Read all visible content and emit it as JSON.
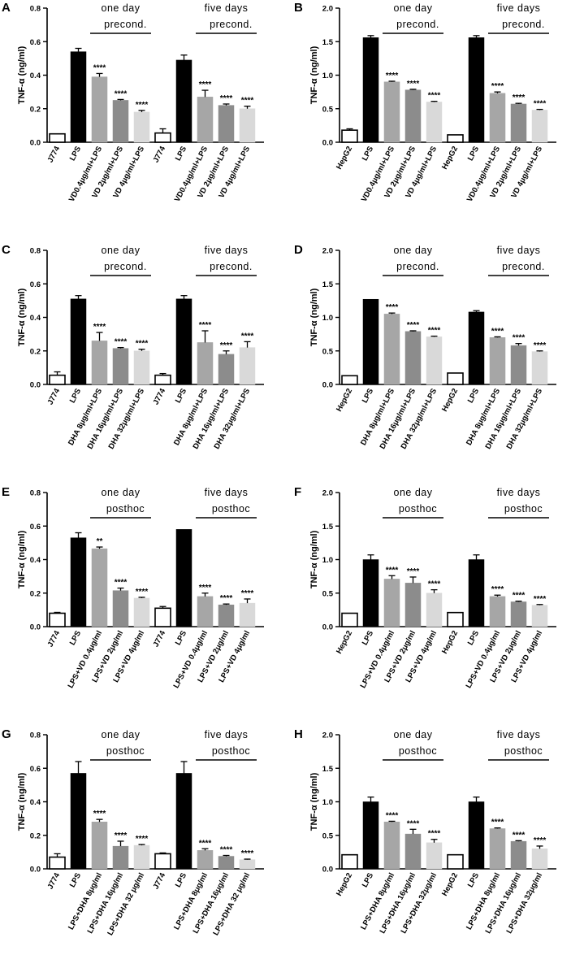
{
  "chart_data": [
    {
      "panel": "A",
      "type": "bar",
      "ylabel": "TNF-α (ng/ml)",
      "ylim": [
        0,
        0.8
      ],
      "yticks": [
        0,
        0.2,
        0.4,
        0.6,
        0.8
      ],
      "tick_labels": [
        "0.0",
        "0.2",
        "0.4",
        "0.6",
        "0.8"
      ],
      "categories": [
        "J774",
        "LPS",
        "VD0.4μg/ml+LPS",
        "VD 2μg/ml+LPS",
        "VD 4μg/ml+LPS",
        "J774",
        "LPS",
        "VD0.4μg/ml+LPS",
        "VD 2μg/ml+LPS",
        "VD 4μg/ml+LPS"
      ],
      "values": [
        0.05,
        0.54,
        0.39,
        0.25,
        0.18,
        0.055,
        0.49,
        0.27,
        0.22,
        0.2
      ],
      "errors": [
        0,
        0.02,
        0.02,
        0.005,
        0.01,
        0.025,
        0.03,
        0.04,
        0.008,
        0.015
      ],
      "significance": [
        "",
        "",
        "****",
        "****",
        "****",
        "",
        "",
        "****",
        "****",
        "****"
      ],
      "groups": [
        {
          "line1": "one day",
          "line2": "precond.",
          "from": 2,
          "to": 4
        },
        {
          "line1": "five days",
          "line2": "precond.",
          "from": 7,
          "to": 9
        }
      ]
    },
    {
      "panel": "B",
      "type": "bar",
      "ylabel": "TNF-α (ng/ml)",
      "ylim": [
        0,
        2.0
      ],
      "yticks": [
        0,
        0.5,
        1.0,
        1.5,
        2.0
      ],
      "tick_labels": [
        "0.0",
        "0.5",
        "1.0",
        "1.5",
        "2.0"
      ],
      "categories": [
        "HepG2",
        "LPS",
        "VD0.4μg/ml+LPS",
        "VD 2μg/ml+LPS",
        "VD 4μg/ml+LPS",
        "HepG2",
        "LPS",
        "VD0.4μg/ml+LPS",
        "VD 2μg/ml+LPS",
        "VD 4μg/ml+LPS"
      ],
      "values": [
        0.18,
        1.56,
        0.9,
        0.78,
        0.6,
        0.11,
        1.56,
        0.73,
        0.57,
        0.48
      ],
      "errors": [
        0.02,
        0.03,
        0.01,
        0.01,
        0.01,
        0,
        0.03,
        0.02,
        0.01,
        0.01
      ],
      "significance": [
        "",
        "",
        "****",
        "****",
        "****",
        "",
        "",
        "****",
        "****",
        "****"
      ],
      "groups": [
        {
          "line1": "one day",
          "line2": "precond.",
          "from": 2,
          "to": 4
        },
        {
          "line1": "five days",
          "line2": "precond.",
          "from": 7,
          "to": 9
        }
      ]
    },
    {
      "panel": "C",
      "type": "bar",
      "ylabel": "TNF-α (ng/ml)",
      "ylim": [
        0,
        0.8
      ],
      "yticks": [
        0,
        0.2,
        0.4,
        0.6,
        0.8
      ],
      "tick_labels": [
        "0.0",
        "0.2",
        "0.4",
        "0.6",
        "0.8"
      ],
      "categories": [
        "J774",
        "LPS",
        "DHA 8μg/ml+LPS",
        "DHA 16μg/ml+LPS",
        "DHA 32μg/ml+LPS",
        "J774",
        "LPS",
        "DHA 8μg/ml+LPS",
        "DHA 16μg/ml+LPS",
        "DHA 32μg/ml+LPS"
      ],
      "values": [
        0.055,
        0.51,
        0.26,
        0.215,
        0.2,
        0.055,
        0.51,
        0.25,
        0.18,
        0.22
      ],
      "errors": [
        0.02,
        0.02,
        0.05,
        0.005,
        0.01,
        0.01,
        0.02,
        0.07,
        0.02,
        0.035
      ],
      "significance": [
        "",
        "",
        "****",
        "****",
        "****",
        "",
        "",
        "****",
        "****",
        "****"
      ],
      "groups": [
        {
          "line1": "one day",
          "line2": "precond.",
          "from": 2,
          "to": 4
        },
        {
          "line1": "five days",
          "line2": "precond.",
          "from": 7,
          "to": 9
        }
      ]
    },
    {
      "panel": "D",
      "type": "bar",
      "ylabel": "TNF-α (ng/ml)",
      "ylim": [
        0,
        2.0
      ],
      "yticks": [
        0,
        0.5,
        1.0,
        1.5,
        2.0
      ],
      "tick_labels": [
        "0.0",
        "0.5",
        "1.0",
        "1.5",
        "2.0"
      ],
      "categories": [
        "HepG2",
        "LPS",
        "DHA 8μg/ml+LPS",
        "DHA 16μg/ml+LPS",
        "DHA 32μg/ml+LPS",
        "HepG2",
        "LPS",
        "DHA 8μg/ml+LPS",
        "DHA 16μg/ml+LPS",
        "DHA 32μg/ml+LPS"
      ],
      "values": [
        0.13,
        1.27,
        1.05,
        0.79,
        0.71,
        0.17,
        1.08,
        0.7,
        0.58,
        0.49
      ],
      "errors": [
        0,
        0,
        0.015,
        0.01,
        0.01,
        0,
        0.02,
        0.01,
        0.03,
        0.01
      ],
      "significance": [
        "",
        "",
        "****",
        "****",
        "****",
        "",
        "",
        "****",
        "****",
        "****"
      ],
      "groups": [
        {
          "line1": "one day",
          "line2": "precond.",
          "from": 2,
          "to": 4
        },
        {
          "line1": "five days",
          "line2": "precond.",
          "from": 7,
          "to": 9
        }
      ]
    },
    {
      "panel": "E",
      "type": "bar",
      "ylabel": "TNF-α (ng/ml)",
      "ylim": [
        0,
        0.8
      ],
      "yticks": [
        0,
        0.2,
        0.4,
        0.6,
        0.8
      ],
      "tick_labels": [
        "0.0",
        "0.2",
        "0.4",
        "0.6",
        "0.8"
      ],
      "categories": [
        "J774",
        "LPS",
        "LPS+VD 0.4μg/ml",
        "LPS+VD 2μg/ml",
        "LPS+VD 4μg/ml",
        "J774",
        "LPS",
        "LPS+VD 0.4μg/ml",
        "LPS+VD 2μg/ml",
        "LPS+VD 4μg/ml"
      ],
      "values": [
        0.08,
        0.53,
        0.465,
        0.215,
        0.17,
        0.11,
        0.58,
        0.18,
        0.13,
        0.14
      ],
      "errors": [
        0.005,
        0.03,
        0.01,
        0.015,
        0.005,
        0.01,
        0,
        0.02,
        0.005,
        0.025
      ],
      "significance": [
        "",
        "",
        "**",
        "****",
        "****",
        "",
        "",
        "****",
        "****",
        "****"
      ],
      "groups": [
        {
          "line1": "one day",
          "line2": "posthoc",
          "from": 2,
          "to": 4
        },
        {
          "line1": "five days",
          "line2": "posthoc",
          "from": 7,
          "to": 9
        }
      ]
    },
    {
      "panel": "F",
      "type": "bar",
      "ylabel": "TNF-α (ng/ml)",
      "ylim": [
        0,
        2.0
      ],
      "yticks": [
        0,
        0.5,
        1.0,
        1.5,
        2.0
      ],
      "tick_labels": [
        "0.0",
        "0.5",
        "1.0",
        "1.5",
        "2.0"
      ],
      "categories": [
        "HepG2",
        "LPS",
        "LPS+VD 0.4μg/ml",
        "LPS+VD 2μg/ml",
        "LPS+VD 4μg/ml",
        "HepG2",
        "LPS",
        "LPS+VD 0.4μg/ml",
        "LPS+VD 2μg/ml",
        "LPS+VD 4μg/ml"
      ],
      "values": [
        0.2,
        1.0,
        0.71,
        0.65,
        0.5,
        0.21,
        1.0,
        0.45,
        0.37,
        0.32
      ],
      "errors": [
        0,
        0.07,
        0.05,
        0.09,
        0.05,
        0,
        0.07,
        0.02,
        0.01,
        0.01
      ],
      "significance": [
        "",
        "",
        "****",
        "****",
        "****",
        "",
        "",
        "****",
        "****",
        "****"
      ],
      "groups": [
        {
          "line1": "one day",
          "line2": "posthoc",
          "from": 2,
          "to": 4
        },
        {
          "line1": "five days",
          "line2": "posthoc",
          "from": 7,
          "to": 9
        }
      ]
    },
    {
      "panel": "G",
      "type": "bar",
      "ylabel": "TNF-α (ng/ml)",
      "ylim": [
        0,
        0.8
      ],
      "yticks": [
        0,
        0.2,
        0.4,
        0.6,
        0.8
      ],
      "tick_labels": [
        "0.0",
        "0.2",
        "0.4",
        "0.6",
        "0.8"
      ],
      "categories": [
        "J774",
        "LPS",
        "LPS+DHA 8μg/ml",
        "LPS+DHA 16μg/ml",
        "LPS+DHA 32 μg/ml",
        "J774",
        "LPS",
        "LPS+DHA 8μg/ml",
        "LPS+DHA 16μg/ml",
        "LPS+DHA 32 μg/ml"
      ],
      "values": [
        0.07,
        0.57,
        0.28,
        0.135,
        0.14,
        0.09,
        0.57,
        0.11,
        0.075,
        0.055
      ],
      "errors": [
        0.02,
        0.07,
        0.015,
        0.03,
        0.005,
        0.005,
        0.07,
        0.01,
        0.005,
        0.003
      ],
      "significance": [
        "",
        "",
        "****",
        "****",
        "****",
        "",
        "",
        "****",
        "****",
        "****"
      ],
      "groups": [
        {
          "line1": "one day",
          "line2": "posthoc",
          "from": 2,
          "to": 4
        },
        {
          "line1": "five days",
          "line2": "posthoc",
          "from": 7,
          "to": 9
        }
      ]
    },
    {
      "panel": "H",
      "type": "bar",
      "ylabel": "TNF-α (ng/ml)",
      "ylim": [
        0,
        2.0
      ],
      "yticks": [
        0,
        0.5,
        1.0,
        1.5,
        2.0
      ],
      "tick_labels": [
        "0.0",
        "0.5",
        "1.0",
        "1.5",
        "2.0"
      ],
      "categories": [
        "HepG2",
        "LPS",
        "LPS+DHA 8μg/ml",
        "LPS+DHA 16μg/ml",
        "LPS+DHA 32μg/ml",
        "HepG2",
        "LPS",
        "LPS+DHA 8μg/ml",
        "LPS+DHA 16μg/ml",
        "LPS+DHA 32μg/ml"
      ],
      "values": [
        0.21,
        1.0,
        0.7,
        0.52,
        0.39,
        0.21,
        1.0,
        0.6,
        0.41,
        0.3
      ],
      "errors": [
        0,
        0.07,
        0.01,
        0.07,
        0.05,
        0,
        0.07,
        0.01,
        0.01,
        0.04
      ],
      "significance": [
        "",
        "",
        "****",
        "****",
        "****",
        "",
        "",
        "****",
        "****",
        "****"
      ],
      "groups": [
        {
          "line1": "one day",
          "line2": "posthoc",
          "from": 2,
          "to": 4
        },
        {
          "line1": "five days",
          "line2": "posthoc",
          "from": 7,
          "to": 9
        }
      ]
    }
  ],
  "bar_colors": [
    "#ffffff",
    "#000000",
    "#a6a6a6",
    "#8c8c8c",
    "#d9d9d9",
    "#ffffff",
    "#000000",
    "#a6a6a6",
    "#8c8c8c",
    "#d9d9d9"
  ]
}
